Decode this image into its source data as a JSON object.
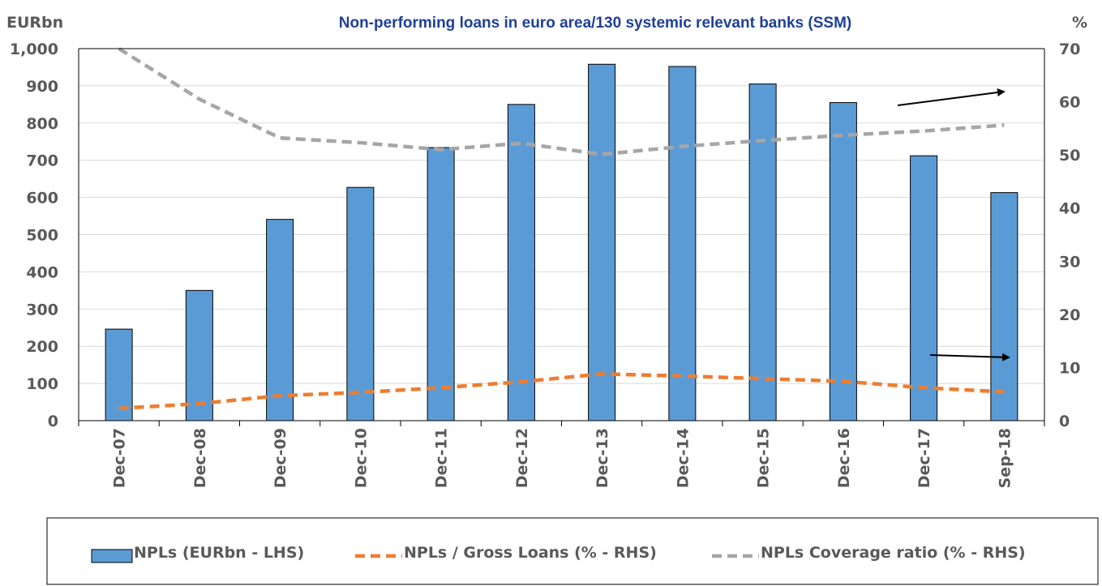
{
  "chart_data": {
    "type": "bar",
    "title": "Non-performing loans in euro area/130 systemic relevant banks (SSM)",
    "y_left_unit": "EURbn",
    "y_right_unit": "%",
    "categories": [
      "Dec-07",
      "Dec-08",
      "Dec-09",
      "Dec-10",
      "Dec-11",
      "Dec-12",
      "Dec-13",
      "Dec-14",
      "Dec-15",
      "Dec-16",
      "Dec-17",
      "Sep-18"
    ],
    "ylim_left": [
      0,
      1000
    ],
    "ylim_right": [
      0,
      70
    ],
    "y_left_ticks": [
      "0",
      "100",
      "200",
      "300",
      "400",
      "500",
      "600",
      "700",
      "800",
      "900",
      "1,000"
    ],
    "y_right_ticks": [
      "0",
      "10",
      "20",
      "30",
      "40",
      "50",
      "60",
      "70"
    ],
    "grid": true,
    "legend_position": "bottom",
    "series": [
      {
        "name": "NPLs (EURbn - LHS)",
        "axis": "left",
        "kind": "bar",
        "color": "#5B9BD5",
        "values": [
          246,
          350,
          541,
          627,
          734,
          850,
          958,
          952,
          905,
          855,
          712,
          613
        ]
      },
      {
        "name": "NPLs / Gross Loans (% - RHS)",
        "axis": "right",
        "kind": "line",
        "style": "dashed",
        "color": "#ED7D31",
        "values": [
          2.3,
          3.2,
          4.7,
          5.3,
          6.2,
          7.3,
          8.8,
          8.4,
          7.9,
          7.4,
          6.2,
          5.4
        ]
      },
      {
        "name": "NPLs Coverage ratio (% - RHS)",
        "axis": "right",
        "kind": "line",
        "style": "dashed",
        "color": "#A6A6A6",
        "values": [
          70.0,
          60.5,
          53.2,
          52.3,
          51.0,
          52.2,
          50.1,
          51.6,
          52.7,
          53.7,
          54.5,
          55.6
        ]
      }
    ]
  }
}
